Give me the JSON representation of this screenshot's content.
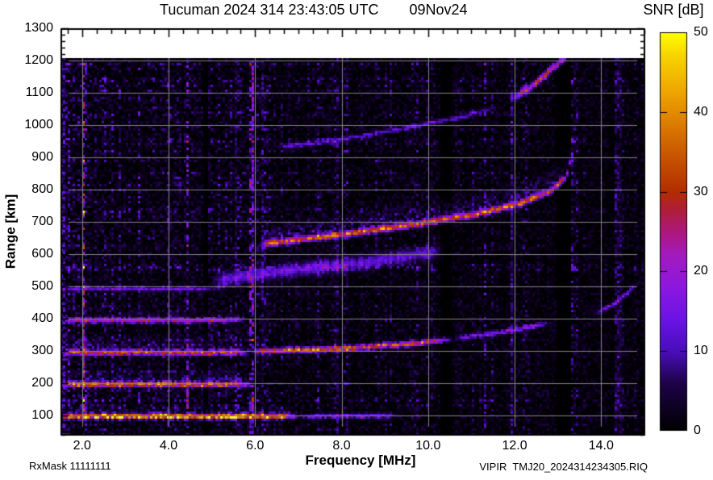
{
  "header": {
    "title_main": "Tucuman 2024 314 23:43:05 UTC",
    "title_date": "09Nov24"
  },
  "footer": {
    "rx_mask": "RxMask 11111111",
    "source_file": "VIPIR  TMJ20_2024314234305.RIQ"
  },
  "chart_data": {
    "type": "heatmap",
    "title": "Tucuman 2024 314 23:43:05 UTC   09Nov24",
    "xlabel": "Frequency [MHz]",
    "ylabel": "Range [km]",
    "xlim": [
      1.5,
      15.02
    ],
    "ylim": [
      37.5,
      1300
    ],
    "data_top_km": 1207,
    "xticks": [
      2,
      4,
      6,
      8,
      10,
      12,
      14
    ],
    "xtick_labels": [
      "2.0",
      "4.0",
      "6.0",
      "8.0",
      "10.0",
      "12.0",
      "14.0"
    ],
    "yticks": [
      100,
      200,
      300,
      400,
      500,
      600,
      700,
      800,
      900,
      1000,
      1100,
      1200,
      1300
    ],
    "ytick_labels": [
      "100",
      "200",
      "300",
      "400",
      "500",
      "600",
      "700",
      "800",
      "900",
      "1000",
      "1100",
      "1200",
      "1300"
    ],
    "grid": {
      "x_step_mhz": 2,
      "y_step_km": 100,
      "color": "#828282"
    },
    "background_color": "#000000",
    "no_data_color": "#ffffff",
    "colorbar": {
      "label": "SNR [dB]",
      "min": 0,
      "max": 50,
      "ticks": [
        0,
        10,
        20,
        30,
        40,
        50
      ],
      "tick_labels": [
        "0",
        "10",
        "20",
        "30",
        "40",
        "50"
      ],
      "colormap": [
        [
          0,
          "#000000"
        ],
        [
          6,
          "#1e0348"
        ],
        [
          10,
          "#4a0ebc"
        ],
        [
          14,
          "#6b14e6"
        ],
        [
          18,
          "#8c18e0"
        ],
        [
          22,
          "#a31bbf"
        ],
        [
          25,
          "#ad187b"
        ],
        [
          28,
          "#b01f33"
        ],
        [
          30,
          "#b32d00"
        ],
        [
          36,
          "#cf6400"
        ],
        [
          42,
          "#eda000"
        ],
        [
          47,
          "#f7d300"
        ],
        [
          50,
          "#ffff00"
        ]
      ]
    },
    "noise": {
      "amps": [
        [
          2.2,
          15
        ],
        [
          6.5,
          11
        ],
        [
          15.1,
          8.5
        ]
      ],
      "fade_above_mhz": 13.8,
      "fade_factor": 0.75,
      "strong_col_prob": 0.055,
      "seed": 20241109
    },
    "traces": [
      {
        "name": "1E-hop",
        "points": [
          [
            1.5,
            97
          ],
          [
            7.0,
            97
          ]
        ],
        "peak": 44,
        "hw": 5,
        "fuzz_h": 38,
        "fuzz_i": 13
      },
      {
        "name": "1E-hop-ext",
        "points": [
          [
            7.0,
            97
          ],
          [
            9.4,
            99
          ]
        ],
        "peak": 13,
        "hw": 5,
        "fuzz_h": 15,
        "fuzz_i": 5
      },
      {
        "name": "2E-hop",
        "points": [
          [
            1.5,
            196
          ],
          [
            5.95,
            196
          ]
        ],
        "peak": 36,
        "hw": 5,
        "fuzz_h": 55,
        "fuzz_i": 13
      },
      {
        "name": "3E-hop",
        "points": [
          [
            1.5,
            295
          ],
          [
            5.9,
            295
          ]
        ],
        "peak": 32,
        "hw": 5,
        "fuzz_h": 70,
        "fuzz_i": 11
      },
      {
        "name": "4E-hop",
        "points": [
          [
            1.5,
            394
          ],
          [
            5.85,
            394
          ]
        ],
        "peak": 19,
        "hw": 5,
        "fuzz_h": 42,
        "fuzz_i": 7
      },
      {
        "name": "5E-hop",
        "points": [
          [
            1.5,
            492
          ],
          [
            5.2,
            492
          ]
        ],
        "peak": 12,
        "hw": 4,
        "fuzz_h": 20,
        "fuzz_i": 4
      },
      {
        "name": "1F-O-trace",
        "points": [
          [
            5.9,
            298
          ],
          [
            8,
            307
          ],
          [
            9.5,
            320
          ],
          [
            10.6,
            338
          ]
        ],
        "peak": 32,
        "hw": 5,
        "fuzz_h": 22,
        "fuzz_i": 6
      },
      {
        "name": "1F-O-weak",
        "points": [
          [
            10.6,
            338
          ],
          [
            11.8,
            360
          ],
          [
            12.9,
            388
          ]
        ],
        "peak": 15,
        "hw": 5,
        "fuzz_h": 12,
        "fuzz_i": 4
      },
      {
        "name": "1F-X-cusp",
        "points": [
          [
            13.8,
            410
          ],
          [
            14.4,
            452
          ],
          [
            15.02,
            530
          ]
        ],
        "peak": 13,
        "hw": 5,
        "fuzz_h": 0,
        "fuzz_i": 0
      },
      {
        "name": "2F-trace",
        "points": [
          [
            6.1,
            630
          ],
          [
            8,
            660
          ],
          [
            9.5,
            688
          ],
          [
            11,
            720
          ],
          [
            12,
            752
          ],
          [
            12.8,
            792
          ],
          [
            13.2,
            840
          ],
          [
            13.35,
            920
          ],
          [
            13.45,
            1005
          ]
        ],
        "peak": 34,
        "hw": 6,
        "fuzz_h": 75,
        "fuzz_i": 13
      },
      {
        "name": "2F-diffuse-low",
        "points": [
          [
            5.0,
            515
          ],
          [
            6.9,
            552
          ],
          [
            8.5,
            573
          ],
          [
            10.4,
            610
          ]
        ],
        "peak": 12,
        "hw": 15,
        "fuzz_h": 20,
        "fuzz_i": 5
      },
      {
        "name": "3F-faint",
        "points": [
          [
            6.5,
            930
          ],
          [
            8,
            955
          ],
          [
            9.5,
            990
          ],
          [
            10.8,
            1025
          ],
          [
            11.7,
            1060
          ]
        ],
        "peak": 10,
        "hw": 5,
        "fuzz_h": 12,
        "fuzz_i": 3
      },
      {
        "name": "3F-bright",
        "points": [
          [
            11.9,
            1075
          ],
          [
            12.5,
            1130
          ],
          [
            13.0,
            1190
          ],
          [
            13.5,
            1248
          ]
        ],
        "peak": 27,
        "hw": 7,
        "fuzz_h": 25,
        "fuzz_i": 7
      },
      {
        "name": "3F-tail",
        "points": [
          [
            14.2,
            1205
          ],
          [
            15.0,
            1258
          ]
        ],
        "peak": 12,
        "hw": 6,
        "fuzz_h": 10,
        "fuzz_i": 3
      }
    ],
    "rfi_stripes": [
      {
        "f": 10.42,
        "w": 0.28,
        "mode": "dark"
      },
      {
        "f": 13.15,
        "w": 0.35,
        "mode": "dark"
      },
      {
        "f": 4.85,
        "w": 0.1,
        "mode": "dark"
      },
      {
        "f": 1.56,
        "w": 0.12,
        "mode": "bright",
        "i": 13
      },
      {
        "f": 5.95,
        "w": 0.08,
        "mode": "bright",
        "i": 12
      },
      {
        "f": 6.17,
        "w": 0.06,
        "mode": "bright",
        "i": 9
      },
      {
        "f": 5.55,
        "w": 0.06,
        "mode": "bright",
        "i": 8
      },
      {
        "f": 7.91,
        "w": 0.06,
        "mode": "bright",
        "i": 9
      },
      {
        "f": 11.95,
        "w": 0.05,
        "mode": "bright",
        "i": 8
      },
      {
        "f": 14.4,
        "w": 0.2,
        "mode": "bright",
        "i": 7
      },
      {
        "f": 4.0,
        "w": 0.05,
        "mode": "bright",
        "i": 7
      }
    ]
  }
}
